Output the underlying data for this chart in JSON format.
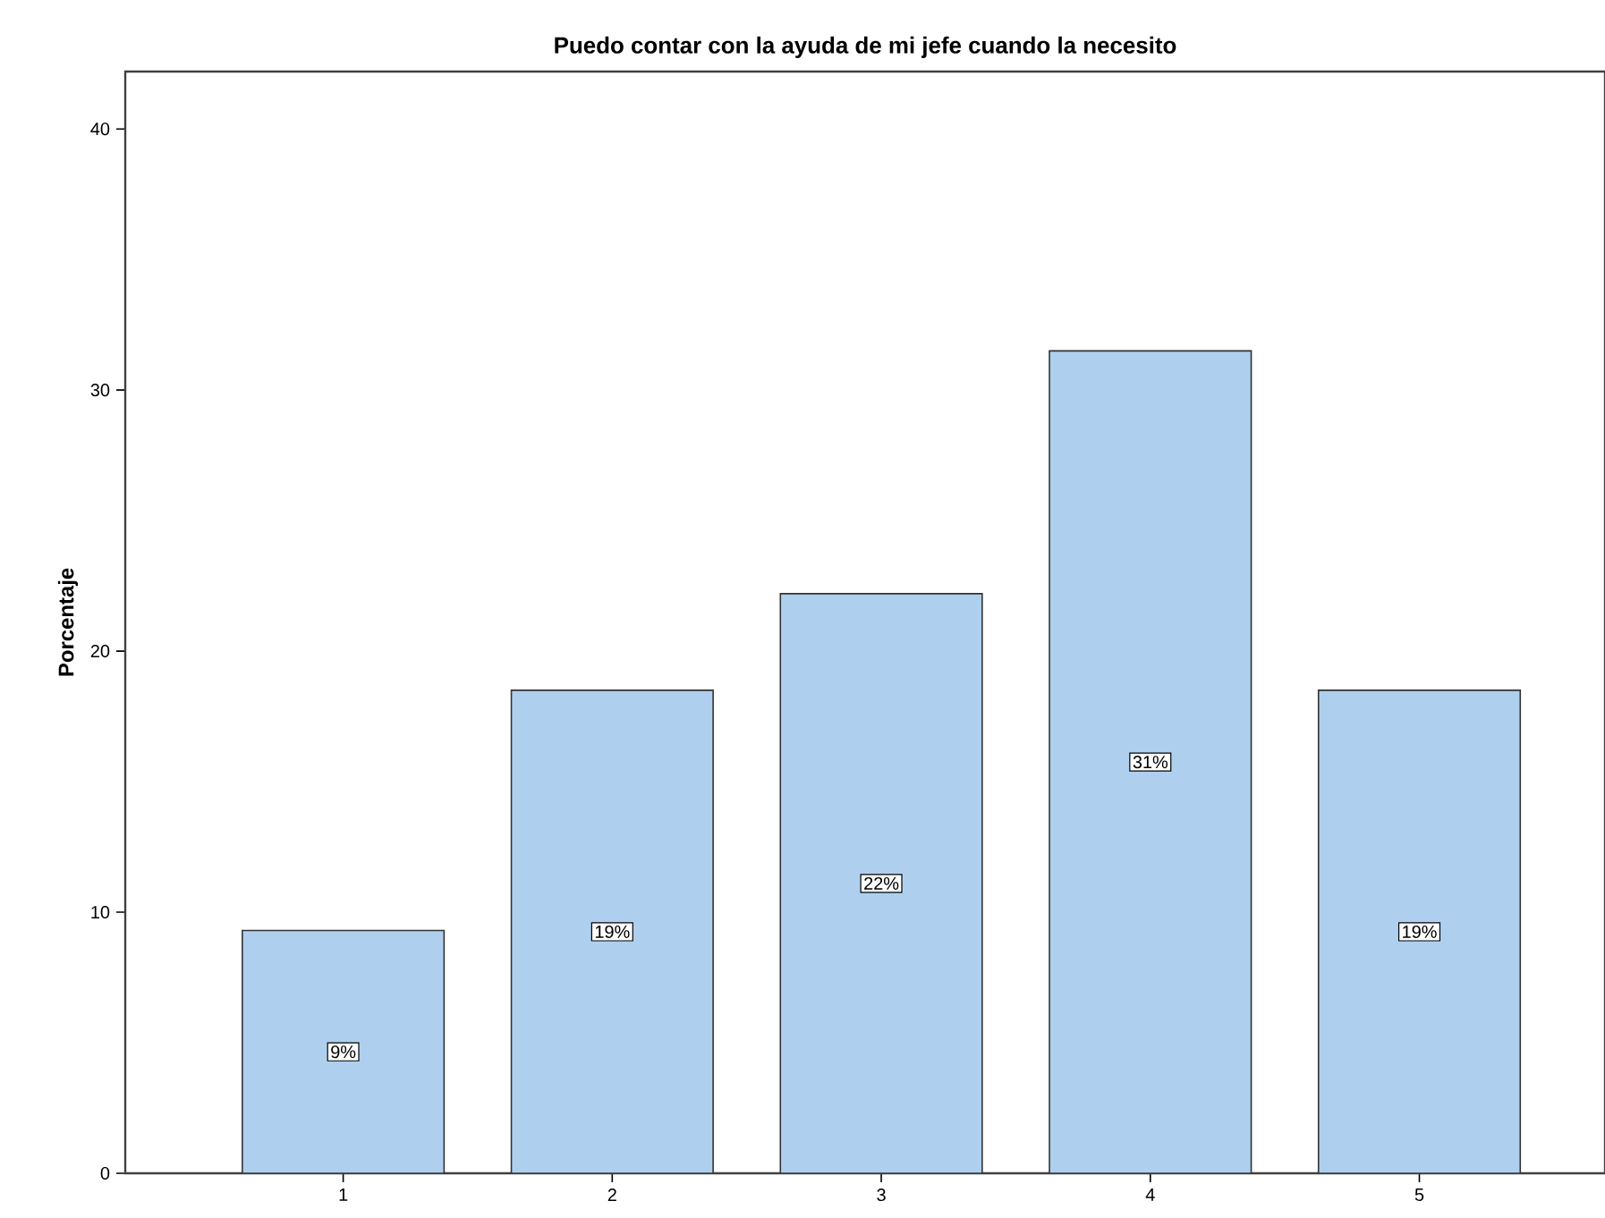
{
  "chart_data": {
    "type": "bar",
    "title": "Puedo contar con la ayuda de mi jefe cuando la necesito",
    "ylabel": "Porcentaje",
    "categories": [
      "1",
      "2",
      "3",
      "4",
      "5"
    ],
    "values": [
      9.3,
      18.5,
      22.2,
      31.5,
      18.5
    ],
    "value_labels": [
      "9%",
      "19%",
      "22%",
      "31%",
      "19%"
    ],
    "color": "#aed0ee",
    "ylim": [
      0,
      42.2
    ],
    "yticks": [
      0,
      10,
      20,
      30,
      40
    ],
    "grid": false
  }
}
